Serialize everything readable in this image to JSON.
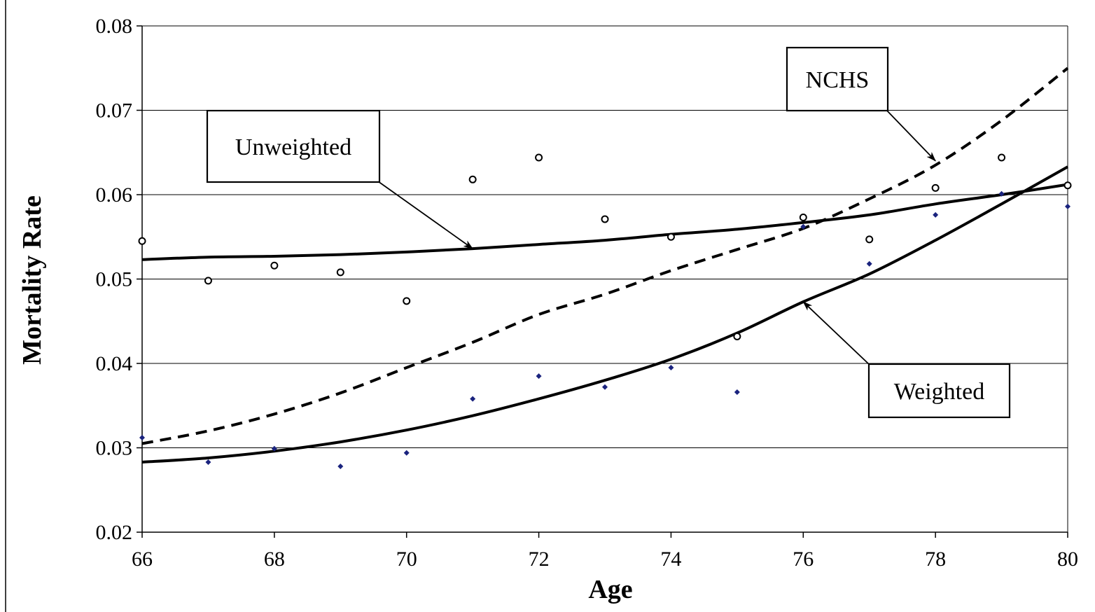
{
  "chart_data": {
    "type": "line",
    "title": "",
    "xlabel": "Age",
    "ylabel": "Mortality Rate",
    "xlim": [
      66,
      80
    ],
    "ylim": [
      0.02,
      0.08
    ],
    "x_ticks": [
      "66",
      "68",
      "70",
      "72",
      "74",
      "76",
      "78",
      "80"
    ],
    "y_ticks": [
      "0.02",
      "0.03",
      "0.04",
      "0.05",
      "0.06",
      "0.07",
      "0.08"
    ],
    "grid": "horizontal",
    "legend": "none",
    "line_series": [
      {
        "label": "Unweighted",
        "style": "solid",
        "x": [
          66,
          67,
          68,
          69,
          70,
          71,
          72,
          73,
          74,
          75,
          76,
          77,
          78,
          79,
          80
        ],
        "y": [
          0.0523,
          0.0526,
          0.0527,
          0.0529,
          0.0532,
          0.0536,
          0.0541,
          0.0546,
          0.0553,
          0.0559,
          0.0567,
          0.0576,
          0.0589,
          0.06,
          0.0612
        ]
      },
      {
        "label": "Weighted",
        "style": "solid",
        "x": [
          66,
          67,
          68,
          69,
          70,
          71,
          72,
          73,
          74,
          75,
          76,
          77,
          78,
          79,
          80
        ],
        "y": [
          0.0283,
          0.0288,
          0.0296,
          0.0307,
          0.0321,
          0.0338,
          0.0358,
          0.038,
          0.0405,
          0.0436,
          0.0473,
          0.0506,
          0.0546,
          0.0589,
          0.0633
        ]
      },
      {
        "label": "NCHS",
        "style": "dashed",
        "x": [
          66,
          67,
          68,
          69,
          70,
          71,
          72,
          73,
          74,
          75,
          76,
          77,
          78,
          79,
          80
        ],
        "y": [
          0.0305,
          0.032,
          0.034,
          0.0365,
          0.0395,
          0.0425,
          0.0458,
          0.0482,
          0.051,
          0.0535,
          0.056,
          0.0595,
          0.0635,
          0.0688,
          0.075
        ]
      }
    ],
    "scatter_series": [
      {
        "marker": "open-circle",
        "x": [
          66,
          67,
          68,
          69,
          70,
          71,
          72,
          73,
          74,
          75,
          76,
          77,
          78,
          79,
          80
        ],
        "y": [
          0.0545,
          0.0498,
          0.0516,
          0.0508,
          0.0474,
          0.0618,
          0.0644,
          0.0571,
          0.055,
          0.0432,
          0.0573,
          0.0547,
          0.0608,
          0.0644,
          0.0611
        ]
      },
      {
        "marker": "diamond",
        "color": "#1a237e",
        "x": [
          66,
          67,
          68,
          69,
          70,
          71,
          72,
          73,
          74,
          75,
          76,
          77,
          78,
          79,
          80
        ],
        "y": [
          0.0312,
          0.0283,
          0.0299,
          0.0278,
          0.0294,
          0.0358,
          0.0385,
          0.0372,
          0.0395,
          0.0366,
          0.0562,
          0.0518,
          0.0576,
          0.0601,
          0.0586
        ]
      }
    ],
    "callouts": [
      {
        "text": "Unweighted",
        "target_x": 71.0,
        "target_y": 0.0536
      },
      {
        "text": "NCHS",
        "target_x": 78.0,
        "target_y": 0.064
      },
      {
        "text": "Weighted",
        "target_x": 76.0,
        "target_y": 0.0473
      }
    ]
  }
}
